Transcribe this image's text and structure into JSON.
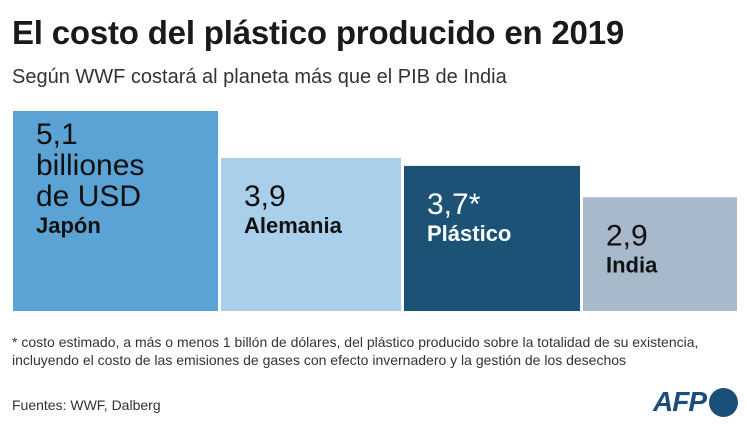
{
  "header": {
    "title": "El costo del plástico producido en 2019",
    "subtitle": "Según WWF costará al planeta más que el PIB de India"
  },
  "chart_data": {
    "type": "bar",
    "categories": [
      "Japón",
      "Alemania",
      "Plástico",
      "India"
    ],
    "values": [
      5.1,
      3.9,
      3.7,
      2.9
    ],
    "value_labels": [
      "5,1\nbilliones\nde USD",
      "3,9",
      "3,7*",
      "2,9"
    ],
    "colors": [
      "#5ba3d4",
      "#a9cfea",
      "#1b5276",
      "#a8b9cc"
    ],
    "label_colors": [
      "#111111",
      "#111111",
      "#ffffff",
      "#111111"
    ],
    "title": "El costo del plástico producido en 2019",
    "subtitle": "Según WWF costará al planeta más que el PIB de India",
    "xlabel": "",
    "ylabel": "",
    "ylim": [
      0,
      5.1
    ],
    "grid": false,
    "legend": "none"
  },
  "footer": {
    "note": "* costo estimado, a más o menos 1 billón de dólares, del plástico producido sobre la totalidad de su existencia, incluyendo el costo de las emisiones de gases con efecto invernadero y la gestión de los desechos",
    "sources": "Fuentes: WWF, Dalberg",
    "logo": "AFP"
  }
}
